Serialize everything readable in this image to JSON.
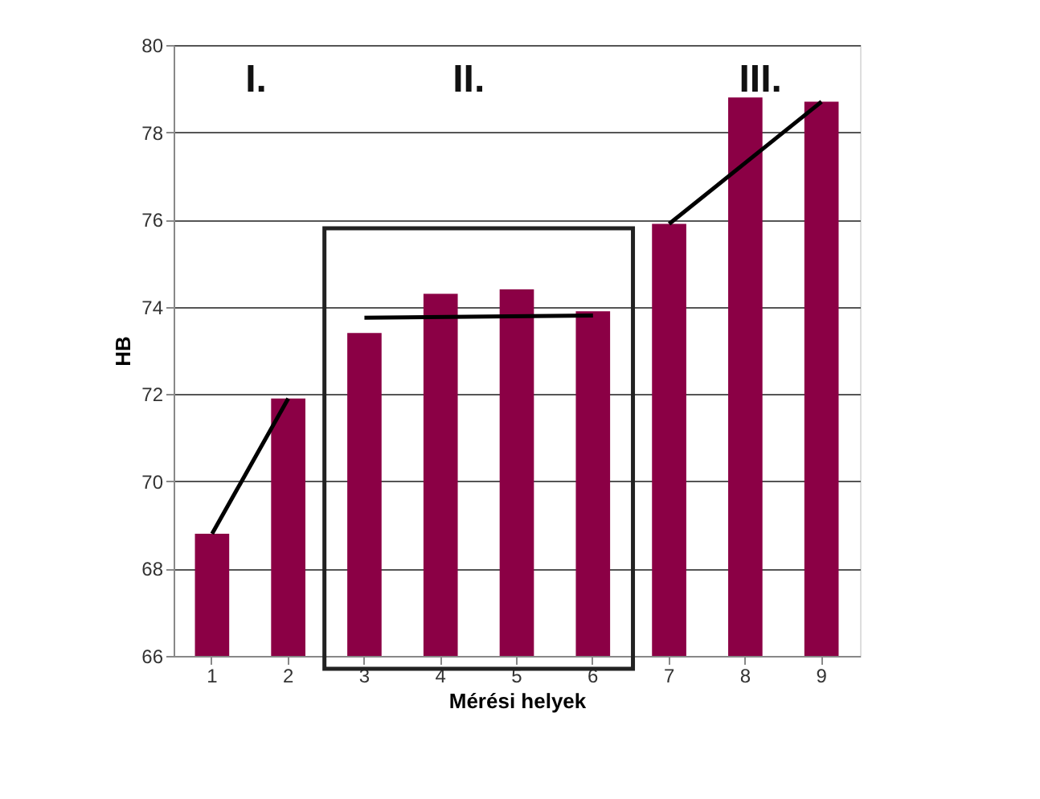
{
  "chart_data": {
    "type": "bar",
    "xlabel": "Mérési helyek",
    "ylabel": "HB",
    "categories": [
      "1",
      "2",
      "3",
      "4",
      "5",
      "6",
      "7",
      "8",
      "9"
    ],
    "series": [
      {
        "color": "#8b0045",
        "values": [
          68.8,
          71.9,
          73.4,
          74.3,
          74.4,
          73.9,
          75.9,
          78.8,
          78.7
        ]
      },
      {
        "type": "line",
        "color": "#000000",
        "x": [
          "1",
          "2"
        ],
        "values": [
          68.8,
          71.9
        ]
      },
      {
        "type": "line",
        "color": "#000000",
        "x": [
          "3",
          "6"
        ],
        "values": [
          73.75,
          73.8
        ]
      },
      {
        "type": "line",
        "color": "#000000",
        "x": [
          "7",
          "9"
        ],
        "values": [
          75.9,
          78.7
        ]
      }
    ],
    "ylim": [
      66,
      80
    ],
    "yticks": [
      66,
      68,
      70,
      72,
      74,
      76,
      78,
      80
    ],
    "grid": "y",
    "marker": "none",
    "line_style": "solid",
    "annotations": [
      "I.",
      "II.",
      "III."
    ]
  }
}
